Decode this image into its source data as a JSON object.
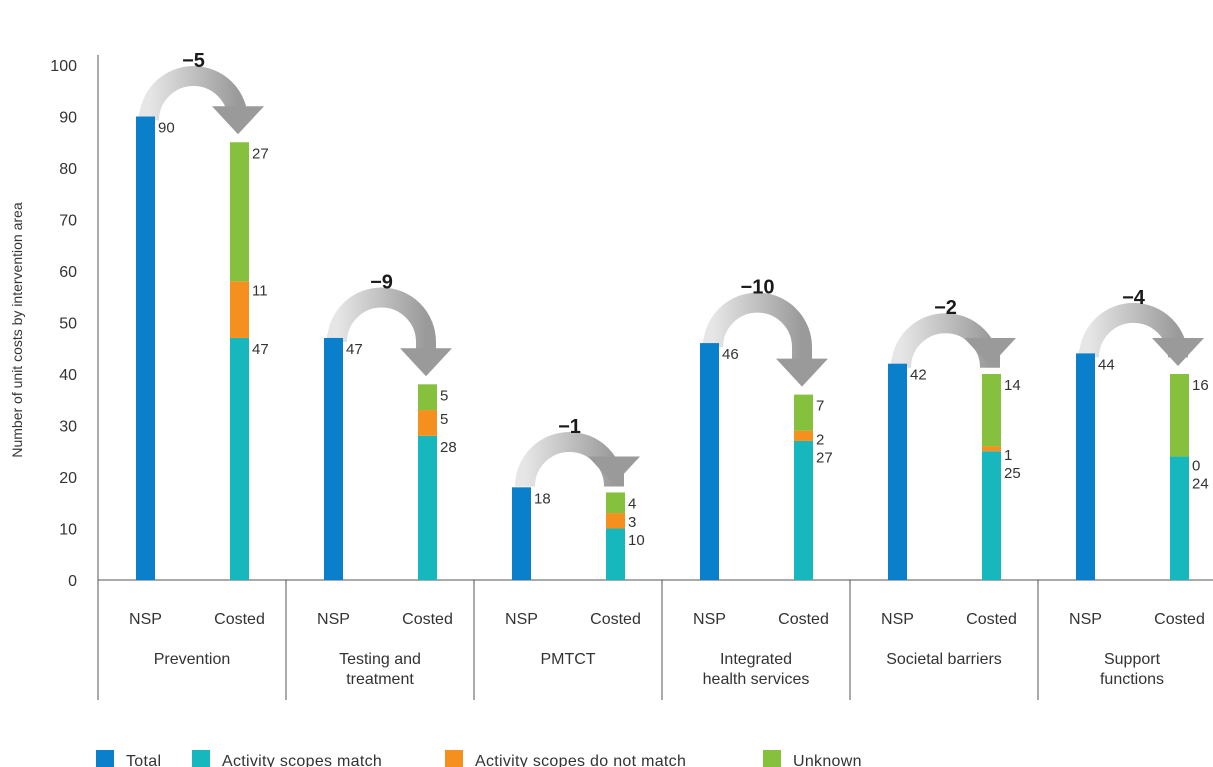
{
  "chart_data": {
    "type": "bar",
    "subtype": "grouped stacked bar",
    "ylabel": "Number of unit costs by intervention area",
    "ylim": [
      0,
      100
    ],
    "yticks": [
      0,
      10,
      20,
      30,
      40,
      50,
      60,
      70,
      80,
      90,
      100
    ],
    "bar_labels": [
      "NSP",
      "Costed"
    ],
    "legend": [
      {
        "key": "total",
        "name": "Total",
        "color": "#0a7fcc"
      },
      {
        "key": "match",
        "name": "Activity scopes match",
        "color": "#17b8bd"
      },
      {
        "key": "nomatch",
        "name": "Activity scopes do not match",
        "color": "#f5901e"
      },
      {
        "key": "unknown",
        "name": "Unknown",
        "color": "#86c13d"
      }
    ],
    "legend_position": "bottom",
    "groups": [
      {
        "name": [
          "Prevention"
        ],
        "nsp_total": 90,
        "costed": {
          "match": 47,
          "nomatch": 11,
          "unknown": 27
        },
        "difference": "−5"
      },
      {
        "name": [
          "Testing and",
          "treatment"
        ],
        "nsp_total": 47,
        "costed": {
          "match": 28,
          "nomatch": 5,
          "unknown": 5
        },
        "difference": "−9"
      },
      {
        "name": [
          "PMTCT"
        ],
        "nsp_total": 18,
        "costed": {
          "match": 10,
          "nomatch": 3,
          "unknown": 4
        },
        "difference": "−1"
      },
      {
        "name": [
          "Integrated",
          "health services"
        ],
        "nsp_total": 46,
        "costed": {
          "match": 27,
          "nomatch": 2,
          "unknown": 7
        },
        "difference": "−10"
      },
      {
        "name": [
          "Societal barriers"
        ],
        "nsp_total": 42,
        "costed": {
          "match": 25,
          "nomatch": 1,
          "unknown": 14
        },
        "difference": "−2"
      },
      {
        "name": [
          "Support",
          "functions"
        ],
        "nsp_total": 44,
        "costed": {
          "match": 24,
          "nomatch": 0,
          "unknown": 16
        },
        "difference": "−4"
      }
    ]
  }
}
